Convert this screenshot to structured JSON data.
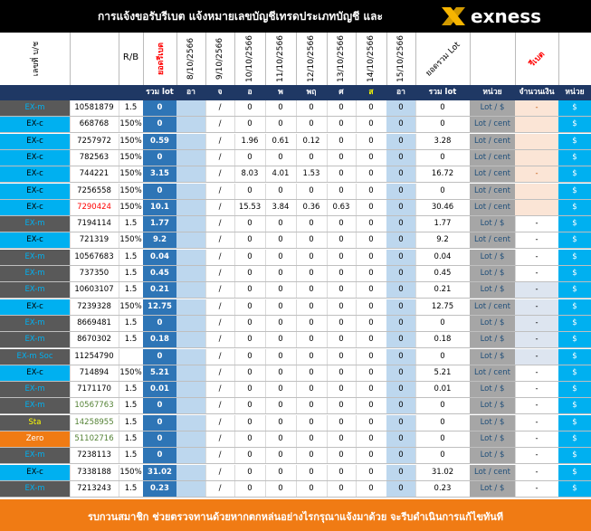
{
  "header": {
    "title": "การแจ้งขอรับรีเบต  แจ้งหมายเลขบัญชีเทรดประเภทบัญชี และ",
    "logo_text": "exness",
    "col_account": "เลขที่ บ/ช",
    "col_rb": "R/B",
    "col_rebate": "ยอดรีเบต",
    "dates": [
      "8/10/2566",
      "9/10/2566",
      "10/10/2566",
      "11/10/2566",
      "12/10/2566",
      "13/10/2566",
      "14/10/2566",
      "15/10/2566"
    ],
    "col_total_lot": "ยอดรวม Lot",
    "col_rebate2": "รีเบต"
  },
  "subheader": {
    "sum_lot": "รวม lot",
    "days": [
      "อา",
      "จ",
      "อ",
      "พ",
      "พฤ",
      "ศ",
      "ส",
      "อา"
    ],
    "sum_lot2": "รวม lot",
    "unit": "หน่วย",
    "amount": "จำนวนเงิน",
    "unit2": "หน่วย"
  },
  "colors": {
    "black": "#000000",
    "navy": "#1f3864",
    "dark_gray": "#595959",
    "cyan": "#00b0f0",
    "blue_cell": "#2e75b6",
    "light_blue": "#bdd7ee",
    "peach": "#fbe5d6",
    "orange": "#f07b14",
    "gray_unit": "#a6a6a6",
    "green_text": "#92d050",
    "yellow_text": "#ffff00",
    "red_text": "#ff0000"
  },
  "rows": [
    {
      "type": "EX-m",
      "account": "10581879",
      "rb": "1.5",
      "rebate": "0",
      "slash": "/",
      "d": [
        "0",
        "0",
        "0",
        "0",
        "0",
        "0"
      ],
      "total": "0",
      "unit": "Lot / $",
      "amount": "-",
      "cur": "$",
      "type_bg": "dark",
      "type_color": "cyan"
    },
    {
      "type": "EX-c",
      "account": "668768",
      "rb": "150%",
      "rebate": "0",
      "slash": "/",
      "d": [
        "0",
        "0",
        "0",
        "0",
        "0",
        "0"
      ],
      "total": "0",
      "unit": "Lot / cent",
      "amount": "",
      "cur": "$",
      "type_bg": "cyan",
      "type_color": "black"
    },
    {
      "type": "EX-c",
      "account": "7257972",
      "rb": "150%",
      "rebate": "0.59",
      "slash": "/",
      "d": [
        "1.96",
        "0.61",
        "0.12",
        "0",
        "0",
        "0"
      ],
      "total": "3.28",
      "unit": "Lot / cent",
      "amount": "",
      "cur": "$",
      "type_bg": "cyan",
      "type_color": "black"
    },
    {
      "type": "EX-c",
      "account": "782563",
      "rb": "150%",
      "rebate": "0",
      "slash": "/",
      "d": [
        "0",
        "0",
        "0",
        "0",
        "0",
        "0"
      ],
      "total": "0",
      "unit": "Lot / cent",
      "amount": "",
      "cur": "$",
      "type_bg": "cyan",
      "type_color": "black"
    },
    {
      "type": "EX-c",
      "account": "744221",
      "rb": "150%",
      "rebate": "3.15",
      "slash": "/",
      "d": [
        "8.03",
        "4.01",
        "1.53",
        "0",
        "0",
        "0"
      ],
      "total": "16.72",
      "unit": "Lot / cent",
      "amount": "-",
      "cur": "$",
      "type_bg": "cyan",
      "type_color": "black"
    },
    {
      "type": "EX-c",
      "account": "7256558",
      "rb": "150%",
      "rebate": "0",
      "slash": "/",
      "d": [
        "0",
        "0",
        "0",
        "0",
        "0",
        "0"
      ],
      "total": "0",
      "unit": "Lot / cent",
      "amount": "",
      "cur": "$",
      "type_bg": "cyan",
      "type_color": "black"
    },
    {
      "type": "EX-c",
      "account": "7290424",
      "rb": "150%",
      "rebate": "10.1",
      "slash": "/",
      "d": [
        "15.53",
        "3.84",
        "0.36",
        "0.63",
        "0",
        "0"
      ],
      "total": "30.46",
      "unit": "Lot / cent",
      "amount": "",
      "cur": "$",
      "type_bg": "cyan",
      "type_color": "black",
      "acct_red": true
    },
    {
      "type": "EX-m",
      "account": "7194114",
      "rb": "1.5",
      "rebate": "1.77",
      "slash": "/",
      "d": [
        "0",
        "0",
        "0",
        "0",
        "0",
        "0"
      ],
      "total": "1.77",
      "unit": "Lot / $",
      "amount": "-",
      "cur": "$",
      "type_bg": "dark",
      "type_color": "cyan"
    },
    {
      "type": "EX-c",
      "account": "721319",
      "rb": "150%",
      "rebate": "9.2",
      "slash": "/",
      "d": [
        "0",
        "0",
        "0",
        "0",
        "0",
        "0"
      ],
      "total": "9.2",
      "unit": "Lot / cent",
      "amount": "-",
      "cur": "$",
      "type_bg": "cyan",
      "type_color": "black"
    },
    {
      "type": "EX-m",
      "account": "10567683",
      "rb": "1.5",
      "rebate": "0.04",
      "slash": "/",
      "d": [
        "0",
        "0",
        "0",
        "0",
        "0",
        "0"
      ],
      "total": "0.04",
      "unit": "Lot / $",
      "amount": "-",
      "cur": "$",
      "type_bg": "dark",
      "type_color": "cyan"
    },
    {
      "type": "EX-m",
      "account": "737350",
      "rb": "1.5",
      "rebate": "0.45",
      "slash": "/",
      "d": [
        "0",
        "0",
        "0",
        "0",
        "0",
        "0"
      ],
      "total": "0.45",
      "unit": "Lot / $",
      "amount": "-",
      "cur": "$",
      "type_bg": "dark",
      "type_color": "cyan"
    },
    {
      "type": "EX-m",
      "account": "10603107",
      "rb": "1.5",
      "rebate": "0.21",
      "slash": "/",
      "d": [
        "0",
        "0",
        "0",
        "0",
        "0",
        "0"
      ],
      "total": "0.21",
      "unit": "Lot / $",
      "amount": "-",
      "cur": "$",
      "type_bg": "dark",
      "type_color": "cyan"
    },
    {
      "type": "EX-c",
      "account": "7239328",
      "rb": "150%",
      "rebate": "12.75",
      "slash": "/",
      "d": [
        "0",
        "0",
        "0",
        "0",
        "0",
        "0"
      ],
      "total": "12.75",
      "unit": "Lot / cent",
      "amount": "-",
      "cur": "$",
      "type_bg": "cyan",
      "type_color": "black"
    },
    {
      "type": "EX-m",
      "account": "8669481",
      "rb": "1.5",
      "rebate": "0",
      "slash": "/",
      "d": [
        "0",
        "0",
        "0",
        "0",
        "0",
        "0"
      ],
      "total": "0",
      "unit": "Lot / $",
      "amount": "-",
      "cur": "$",
      "type_bg": "dark",
      "type_color": "cyan"
    },
    {
      "type": "EX-m",
      "account": "8670302",
      "rb": "1.5",
      "rebate": "0.18",
      "slash": "/",
      "d": [
        "0",
        "0",
        "0",
        "0",
        "0",
        "0"
      ],
      "total": "0.18",
      "unit": "Lot / $",
      "amount": "-",
      "cur": "$",
      "type_bg": "dark",
      "type_color": "cyan"
    },
    {
      "type": "EX-m Soc",
      "account": "11254790",
      "rb": "",
      "rebate": "0",
      "slash": "/",
      "d": [
        "0",
        "0",
        "0",
        "0",
        "0",
        "0"
      ],
      "total": "0",
      "unit": "Lot / $",
      "amount": "-",
      "cur": "$",
      "type_bg": "dark",
      "type_color": "cyan"
    },
    {
      "type": "EX-c",
      "account": "714894",
      "rb": "150%",
      "rebate": "5.21",
      "slash": "/",
      "d": [
        "0",
        "0",
        "0",
        "0",
        "0",
        "0"
      ],
      "total": "5.21",
      "unit": "Lot / cent",
      "amount": "-",
      "cur": "$",
      "type_bg": "cyan",
      "type_color": "black"
    },
    {
      "type": "EX-m",
      "account": "7171170",
      "rb": "1.5",
      "rebate": "0.01",
      "slash": "/",
      "d": [
        "0",
        "0",
        "0",
        "0",
        "0",
        "0"
      ],
      "total": "0.01",
      "unit": "Lot / $",
      "amount": "-",
      "cur": "$",
      "type_bg": "dark",
      "type_color": "cyan"
    },
    {
      "type": "EX-m",
      "account": "10567763",
      "rb": "1.5",
      "rebate": "0",
      "slash": "/",
      "d": [
        "0",
        "0",
        "0",
        "0",
        "0",
        "0"
      ],
      "total": "0",
      "unit": "Lot / $",
      "amount": "-",
      "cur": "$",
      "type_bg": "dark",
      "type_color": "cyan",
      "acct_green": true
    },
    {
      "type": "Sta",
      "account": "14258955",
      "rb": "1.5",
      "rebate": "0",
      "slash": "/",
      "d": [
        "0",
        "0",
        "0",
        "0",
        "0",
        "0"
      ],
      "total": "0",
      "unit": "Lot / $",
      "amount": "-",
      "cur": "$",
      "type_bg": "dark",
      "type_color": "yellow",
      "acct_green": true
    },
    {
      "type": "Zero",
      "account": "51102716",
      "rb": "1.5",
      "rebate": "0",
      "slash": "/",
      "d": [
        "0",
        "0",
        "0",
        "0",
        "0",
        "0"
      ],
      "total": "0",
      "unit": "Lot / $",
      "amount": "-",
      "cur": "$",
      "type_bg": "orange",
      "type_color": "white",
      "acct_green": true
    },
    {
      "type": "EX-m",
      "account": "7238113",
      "rb": "1.5",
      "rebate": "0",
      "slash": "/",
      "d": [
        "0",
        "0",
        "0",
        "0",
        "0",
        "0"
      ],
      "total": "0",
      "unit": "Lot / $",
      "amount": "-",
      "cur": "$",
      "type_bg": "dark",
      "type_color": "cyan"
    },
    {
      "type": "EX-c",
      "account": "7338188",
      "rb": "150%",
      "rebate": "31.02",
      "slash": "/",
      "d": [
        "0",
        "0",
        "0",
        "0",
        "0",
        "0"
      ],
      "total": "31.02",
      "unit": "Lot / cent",
      "amount": "-",
      "cur": "$",
      "type_bg": "cyan",
      "type_color": "black"
    },
    {
      "type": "EX-m",
      "account": "7213243",
      "rb": "1.5",
      "rebate": "0.23",
      "slash": "/",
      "d": [
        "0",
        "0",
        "0",
        "0",
        "0",
        "0"
      ],
      "total": "0.23",
      "unit": "Lot / $",
      "amount": "-",
      "cur": "$",
      "type_bg": "dark",
      "type_color": "cyan"
    }
  ],
  "footer": {
    "text": "รบกวนสมาชิก ช่วยตรวจทานด้วยหากตกหล่นอย่างไรกรุณาแจ้งมาด้วย จะรีบดำเนินการแก้ไขทันที"
  }
}
